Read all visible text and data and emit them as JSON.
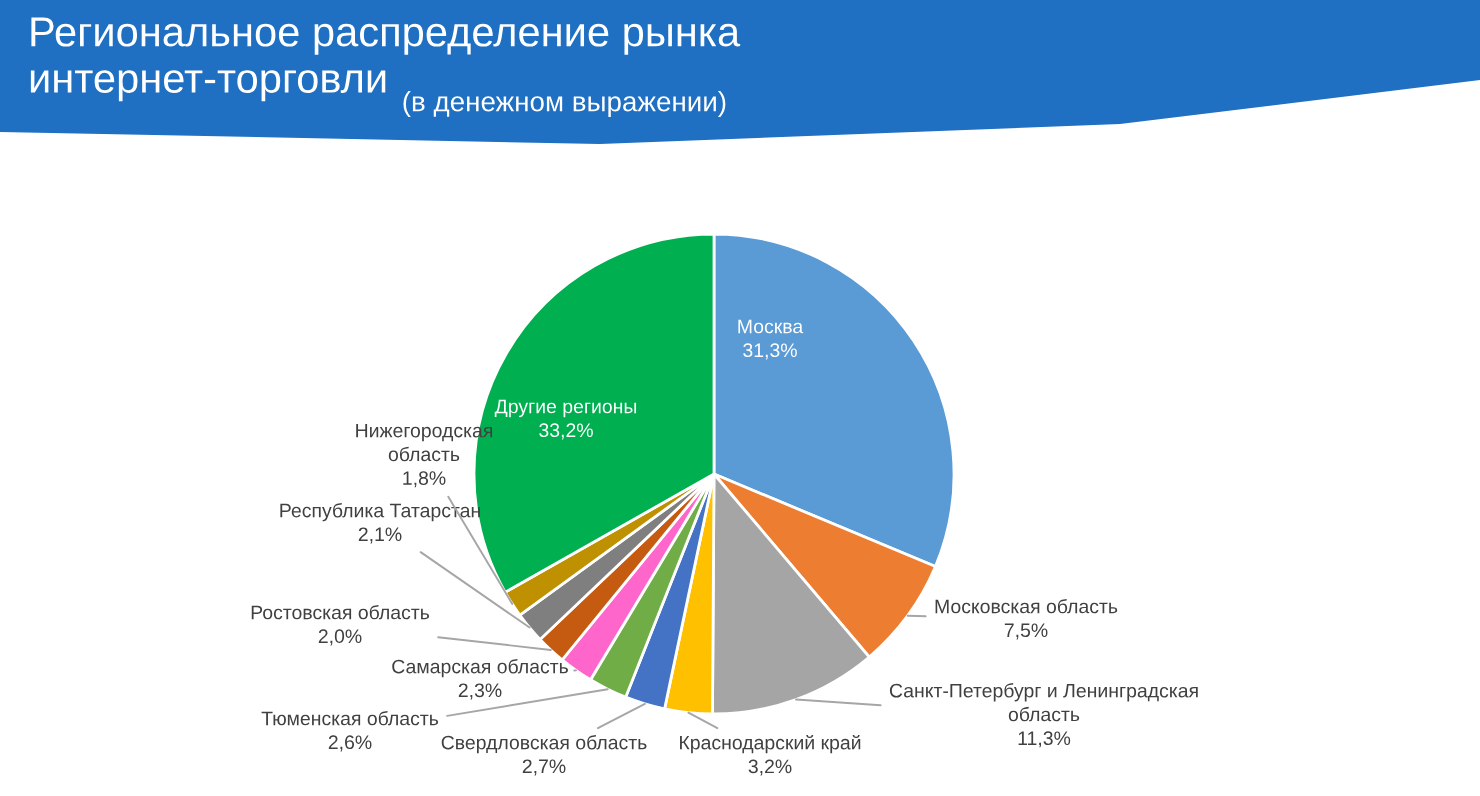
{
  "chart_data": {
    "type": "pie",
    "title": "Региональное распределение рынка\nинтернет-торговли",
    "subtitle": "(в денежном выражении)",
    "categories": [
      "Москва",
      "Московская область",
      "Санкт-Петербург и Ленинградская\nобласть",
      "Краснодарский край",
      "Свердловская область",
      "Тюменская область",
      "Самарская область",
      "Ростовская область",
      "Республика Татарстан",
      "Нижегородская\nобласть",
      "Другие регионы"
    ],
    "values": [
      31.3,
      7.5,
      11.3,
      3.2,
      2.7,
      2.6,
      2.3,
      2.0,
      2.1,
      1.8,
      33.2
    ],
    "value_labels": [
      "31,3%",
      "7,5%",
      "11,3%",
      "3,2%",
      "2,7%",
      "2,6%",
      "2,3%",
      "2,0%",
      "2,1%",
      "1,8%",
      "33,2%"
    ],
    "colors": [
      "#5b9bd5",
      "#ed7d31",
      "#a5a5a5",
      "#ffc000",
      "#4472c4",
      "#70ad47",
      "#ff66cc",
      "#c55a11",
      "#7f7f7f",
      "#bf9000",
      "#00b050"
    ],
    "legend": false
  }
}
